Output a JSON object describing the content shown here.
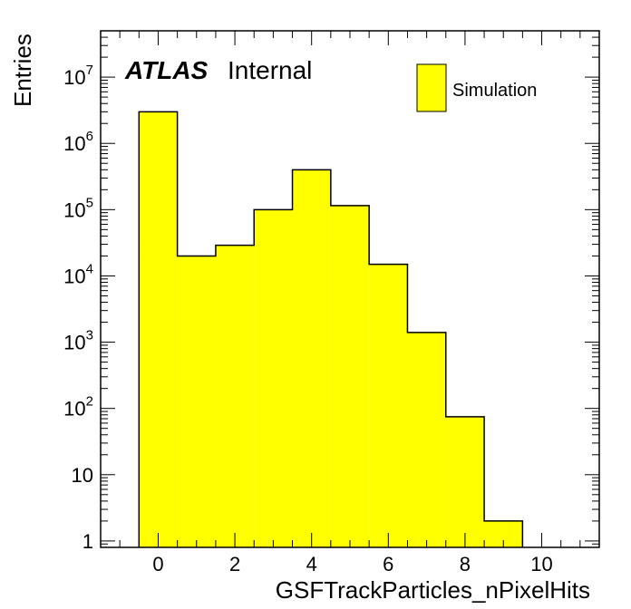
{
  "chart_data": {
    "type": "bar",
    "histogram": true,
    "x": [
      0,
      1,
      2,
      3,
      4,
      5,
      6,
      7,
      8,
      9
    ],
    "bin_width": 1,
    "values": [
      3000000,
      20000,
      29000,
      100000,
      400000,
      115000,
      15000,
      1400,
      75,
      2
    ],
    "xlabel": "GSFTrackParticles_nPixelHits",
    "ylabel": "Entries",
    "xlim": [
      -1.5,
      11.5
    ],
    "ylim": [
      0.8,
      50000000
    ],
    "yscale": "log",
    "x_ticks": [
      0,
      2,
      4,
      6,
      8,
      10
    ],
    "y_ticks": [
      {
        "value": 1,
        "mantissa": "1",
        "exponent": ""
      },
      {
        "value": 10,
        "mantissa": "10",
        "exponent": ""
      },
      {
        "value": 100,
        "mantissa": "10",
        "exponent": "2"
      },
      {
        "value": 1000,
        "mantissa": "10",
        "exponent": "3"
      },
      {
        "value": 10000,
        "mantissa": "10",
        "exponent": "4"
      },
      {
        "value": 100000,
        "mantissa": "10",
        "exponent": "5"
      },
      {
        "value": 1000000,
        "mantissa": "10",
        "exponent": "6"
      },
      {
        "value": 10000000,
        "mantissa": "10",
        "exponent": "7"
      }
    ],
    "grid": false,
    "legend": {
      "placement": "top-right",
      "entries": [
        {
          "label": "Simulation",
          "color": "#ffff00"
        }
      ]
    },
    "label": {
      "bold": "ATLAS",
      "text": "Internal"
    },
    "colors": {
      "fill": "#ffff00",
      "line": "#000000"
    }
  }
}
